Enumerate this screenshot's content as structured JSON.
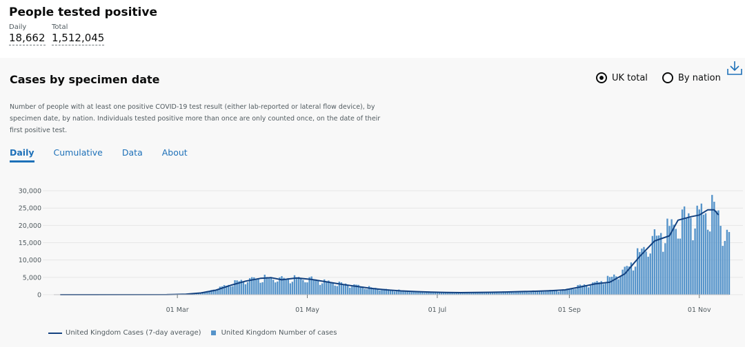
{
  "header": {
    "title": "People tested positive",
    "daily_label": "Daily",
    "daily_value": "18,662",
    "total_label": "Total",
    "total_value": "1,512,045"
  },
  "card": {
    "title": "Cases by specimen date",
    "radio_uk": "UK total",
    "radio_nation": "By nation",
    "radio_selected": "UK total",
    "description": "Number of people with at least one positive COVID-19 test result (either lab-reported or lateral flow device), by specimen date, by nation. Individuals tested positive more than once are only counted once, on the date of their first positive test.",
    "tabs": [
      {
        "label": "Daily",
        "active": true
      },
      {
        "label": "Cumulative",
        "active": false
      },
      {
        "label": "Data",
        "active": false
      },
      {
        "label": "About",
        "active": false
      }
    ]
  },
  "colors": {
    "bar": "#5694CA",
    "line": "#12407F",
    "accent": "#1d70b8",
    "panel_bg": "#f8f8f8"
  },
  "icons": {
    "download": "download-icon"
  },
  "chart_data": {
    "type": "bar",
    "x_range": [
      "2020-01-03",
      "2020-11-15"
    ],
    "ylim": [
      0,
      31000
    ],
    "y_ticks": [
      0,
      5000,
      10000,
      15000,
      20000,
      25000,
      30000
    ],
    "y_tick_labels": [
      "0",
      "5,000",
      "10,000",
      "15,000",
      "20,000",
      "25,000",
      "30,000"
    ],
    "x_ticks": [
      {
        "date": "2020-03-01",
        "label": "01 Mar"
      },
      {
        "date": "2020-05-01",
        "label": "01 May"
      },
      {
        "date": "2020-07-01",
        "label": "01 Jul"
      },
      {
        "date": "2020-09-01",
        "label": "01 Sep"
      },
      {
        "date": "2020-11-01",
        "label": "01 Nov"
      }
    ],
    "daily_series_name": "United Kingdom Number of cases",
    "avg_series_name": "United Kingdom Cases (7-day average)",
    "daily_keypoints": [
      [
        "2020-01-03",
        0
      ],
      [
        "2020-02-20",
        10
      ],
      [
        "2020-03-01",
        40
      ],
      [
        "2020-03-08",
        250
      ],
      [
        "2020-03-15",
        900
      ],
      [
        "2020-03-22",
        2300
      ],
      [
        "2020-03-29",
        3800
      ],
      [
        "2020-04-05",
        4600
      ],
      [
        "2020-04-12",
        4900
      ],
      [
        "2020-04-19",
        4700
      ],
      [
        "2020-04-26",
        4800
      ],
      [
        "2020-05-03",
        4600
      ],
      [
        "2020-05-10",
        3800
      ],
      [
        "2020-05-17",
        3200
      ],
      [
        "2020-05-24",
        2700
      ],
      [
        "2020-05-31",
        2000
      ],
      [
        "2020-06-07",
        1500
      ],
      [
        "2020-06-14",
        1200
      ],
      [
        "2020-06-21",
        900
      ],
      [
        "2020-06-28",
        800
      ],
      [
        "2020-07-05",
        650
      ],
      [
        "2020-07-12",
        600
      ],
      [
        "2020-07-19",
        650
      ],
      [
        "2020-07-26",
        700
      ],
      [
        "2020-08-02",
        800
      ],
      [
        "2020-08-09",
        950
      ],
      [
        "2020-08-16",
        1050
      ],
      [
        "2020-08-23",
        1200
      ],
      [
        "2020-08-30",
        1400
      ],
      [
        "2020-09-06",
        2600
      ],
      [
        "2020-09-13",
        3400
      ],
      [
        "2020-09-20",
        4800
      ],
      [
        "2020-09-27",
        7200
      ],
      [
        "2020-10-04",
        12000
      ],
      [
        "2020-10-11",
        16500
      ],
      [
        "2020-10-18",
        19500
      ],
      [
        "2020-10-25",
        22500
      ],
      [
        "2020-11-01",
        23500
      ],
      [
        "2020-11-05",
        25000
      ],
      [
        "2020-11-09",
        24500
      ],
      [
        "2020-11-12",
        20000
      ],
      [
        "2020-11-15",
        16500
      ]
    ],
    "avg_keypoints": [
      [
        "2020-01-06",
        0
      ],
      [
        "2020-02-25",
        20
      ],
      [
        "2020-03-05",
        150
      ],
      [
        "2020-03-12",
        500
      ],
      [
        "2020-03-19",
        1300
      ],
      [
        "2020-03-26",
        2700
      ],
      [
        "2020-04-02",
        3900
      ],
      [
        "2020-04-09",
        4700
      ],
      [
        "2020-04-14",
        4900
      ],
      [
        "2020-04-19",
        4300
      ],
      [
        "2020-04-26",
        4800
      ],
      [
        "2020-05-03",
        4400
      ],
      [
        "2020-05-10",
        3700
      ],
      [
        "2020-05-17",
        3000
      ],
      [
        "2020-05-24",
        2400
      ],
      [
        "2020-05-31",
        1800
      ],
      [
        "2020-06-07",
        1400
      ],
      [
        "2020-06-14",
        1100
      ],
      [
        "2020-06-21",
        900
      ],
      [
        "2020-06-28",
        750
      ],
      [
        "2020-07-05",
        650
      ],
      [
        "2020-07-12",
        600
      ],
      [
        "2020-07-19",
        650
      ],
      [
        "2020-07-26",
        700
      ],
      [
        "2020-08-02",
        780
      ],
      [
        "2020-08-09",
        900
      ],
      [
        "2020-08-16",
        1000
      ],
      [
        "2020-08-23",
        1150
      ],
      [
        "2020-08-30",
        1400
      ],
      [
        "2020-09-06",
        2200
      ],
      [
        "2020-09-13",
        3100
      ],
      [
        "2020-09-20",
        3600
      ],
      [
        "2020-09-27",
        6000
      ],
      [
        "2020-10-04",
        11000
      ],
      [
        "2020-10-11",
        15500
      ],
      [
        "2020-10-18",
        17000
      ],
      [
        "2020-10-22",
        21500
      ],
      [
        "2020-10-28",
        22500
      ],
      [
        "2020-11-01",
        23000
      ],
      [
        "2020-11-05",
        24500
      ],
      [
        "2020-11-08",
        24500
      ],
      [
        "2020-11-10",
        23000
      ]
    ],
    "grid": true,
    "legend_position": "bottom-left"
  }
}
